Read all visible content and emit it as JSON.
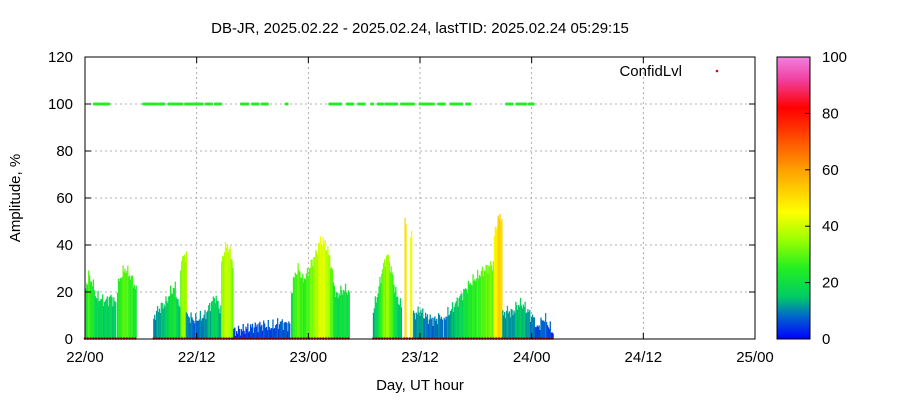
{
  "chart_data": {
    "type": "area",
    "title": "DB-JR, 2025.02.22 - 2025.02.24, lastTID: 2025.02.24 05:29:15",
    "xlabel": "Day, UT hour",
    "ylabel": "Amplitude, %",
    "xlim": [
      0,
      72
    ],
    "ylim": [
      0,
      120
    ],
    "x_ticks": [
      0,
      12,
      24,
      36,
      48,
      60,
      72
    ],
    "x_tick_labels": [
      "22/00",
      "22/12",
      "23/00",
      "23/12",
      "24/00",
      "24/12",
      "25/00"
    ],
    "y_ticks": [
      0,
      20,
      40,
      60,
      80,
      100,
      120
    ],
    "grid": true,
    "legend": {
      "label": "ConfidLvl",
      "position": "top-right"
    },
    "colorbar": {
      "min": 0,
      "max": 100,
      "ticks": [
        0,
        20,
        40,
        60,
        80,
        100
      ],
      "colormap": "blue-green-yellow-red-magenta"
    },
    "segments": [
      {
        "x": [
          0.1,
          0.4,
          0.8,
          1.2,
          1.7,
          2.2,
          2.8,
          3.3
        ],
        "y": [
          22,
          27,
          24,
          18,
          17,
          16,
          18,
          15
        ]
      },
      {
        "x": [
          3.5,
          3.9,
          4.3,
          4.7,
          5.1,
          5.5
        ],
        "y": [
          22,
          27,
          30,
          28,
          25,
          21
        ]
      },
      {
        "x": [
          7.4,
          7.8,
          8.3,
          8.8,
          9.2,
          9.7,
          10.2
        ],
        "y": [
          9,
          12,
          14,
          16,
          20,
          22,
          12
        ]
      },
      {
        "x": [
          10.3,
          10.6,
          10.9
        ],
        "y": [
          32,
          35,
          36
        ]
      },
      {
        "x": [
          10.9,
          11.4,
          11.9,
          12.4,
          12.9,
          13.4,
          14.0,
          14.6
        ],
        "y": [
          10,
          9,
          8,
          9,
          10,
          14,
          18,
          12
        ]
      },
      {
        "x": [
          14.7,
          15.0,
          15.3,
          15.6,
          15.9
        ],
        "y": [
          33,
          38,
          40,
          37,
          32
        ]
      },
      {
        "x": [
          16.0,
          17.0,
          18.0,
          19.0,
          20.0,
          21.0,
          22.0
        ],
        "y": [
          3,
          4,
          5,
          6,
          5,
          7,
          6
        ]
      },
      {
        "x": [
          22.2,
          22.6,
          23.0,
          23.4,
          23.8,
          24.3,
          24.8,
          25.3,
          25.8,
          26.3,
          26.9
        ],
        "y": [
          20,
          28,
          30,
          25,
          27,
          32,
          36,
          42,
          41,
          35,
          20
        ]
      },
      {
        "x": [
          27.0,
          27.4,
          27.9,
          28.4
        ],
        "y": [
          18,
          20,
          21,
          20
        ]
      },
      {
        "x": [
          31.0,
          31.5,
          32.0,
          32.5,
          33.0,
          33.5,
          34.0
        ],
        "y": [
          12,
          20,
          30,
          36,
          28,
          18,
          14
        ]
      },
      {
        "x": [
          34.4,
          34.5
        ],
        "y": [
          49,
          50
        ]
      },
      {
        "x": [
          35.0,
          35.1
        ],
        "y": [
          45,
          46
        ]
      },
      {
        "x": [
          35.3,
          36.0,
          36.8,
          37.6,
          38.4
        ],
        "y": [
          10,
          12,
          9,
          8,
          10
        ]
      },
      {
        "x": [
          38.6,
          39.3,
          40.0,
          40.7,
          41.5,
          42.3,
          43.1,
          43.9
        ],
        "y": [
          9,
          12,
          16,
          20,
          24,
          27,
          30,
          32
        ]
      },
      {
        "x": [
          44.0,
          44.3,
          44.6,
          44.8
        ],
        "y": [
          44,
          50,
          52,
          52
        ]
      },
      {
        "x": [
          44.9,
          45.4,
          45.9,
          46.4,
          46.9,
          47.4,
          47.9,
          48.4
        ],
        "y": [
          10,
          12,
          11,
          14,
          15,
          13,
          10,
          8
        ]
      },
      {
        "x": [
          48.5,
          49.0,
          49.4,
          49.9,
          50.3
        ],
        "y": [
          4,
          7,
          9,
          5,
          3
        ]
      }
    ],
    "confidence_points_y": 100,
    "confidence_point_ranges": [
      [
        1.0,
        2.6
      ],
      [
        6.3,
        7.8
      ],
      [
        8.0,
        8.5
      ],
      [
        9.0,
        10.5
      ],
      [
        10.8,
        12.6
      ],
      [
        13.0,
        13.6
      ],
      [
        14.0,
        14.6
      ],
      [
        16.8,
        17.6
      ],
      [
        18.0,
        18.6
      ],
      [
        19.0,
        19.6
      ],
      [
        21.6,
        21.8
      ],
      [
        26.3,
        27.6
      ],
      [
        28.2,
        28.9
      ],
      [
        29.4,
        30.0
      ],
      [
        30.8,
        31.0
      ],
      [
        31.5,
        32.0
      ],
      [
        32.3,
        33.5
      ],
      [
        34.0,
        35.4
      ],
      [
        36.0,
        37.5
      ],
      [
        38.0,
        38.6
      ],
      [
        39.3,
        40.6
      ],
      [
        41.0,
        41.4
      ],
      [
        45.3,
        46.0
      ],
      [
        46.4,
        47.4
      ],
      [
        47.7,
        48.2
      ]
    ],
    "zero_points_ranges": [
      [
        0.0,
        5.5
      ],
      [
        7.4,
        16.0
      ],
      [
        16.0,
        28.4
      ],
      [
        31.0,
        50.3
      ]
    ]
  }
}
